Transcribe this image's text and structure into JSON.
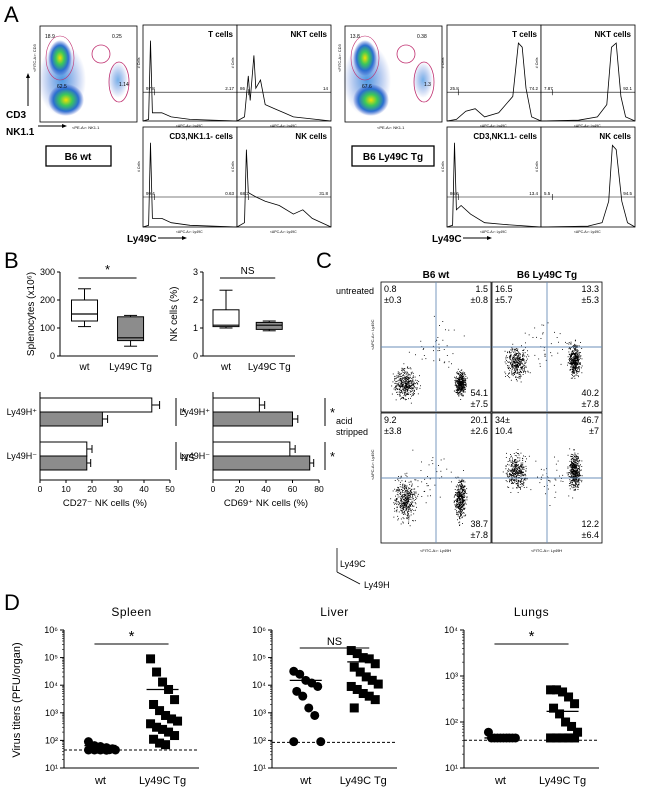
{
  "panels": {
    "A": {
      "letter": "A",
      "flow": {
        "wt_label": "B6 wt",
        "tg_label": "B6 Ly49C Tg",
        "axes": {
          "cd3": "CD3",
          "nk11": "NK1.1",
          "ly49c": "Ly49C",
          "fitc_cd3": "<FITC-A>: CD3",
          "pe_nk11": "<PE-A>: NK1.1",
          "apc_ly49c": "<APC-A>: Ly49C",
          "count": "# Cells"
        },
        "wt_dot": {
          "top_left": "18.9",
          "top_right": "0.25",
          "bottom_left": "62.5",
          "right_gate": "1.14"
        },
        "tg_dot": {
          "top_left": "13.8",
          "top_right": "0.38",
          "bottom_left": "67.6",
          "right_gate": "1.3"
        },
        "histograms": {
          "wt_t": {
            "title": "T cells",
            "left": "97.8",
            "right": "2.17"
          },
          "wt_nkt": {
            "title": "NKT cells",
            "left": "86",
            "right": "14"
          },
          "wt_cd3nk": {
            "title": "CD3,NK1.1- cells",
            "left": "99.4",
            "right": "0.63"
          },
          "wt_nk": {
            "title": "NK cells",
            "left": "68.2",
            "right": "31.8"
          },
          "tg_t": {
            "title": "T cells",
            "left": "25.8",
            "right": "74.2"
          },
          "tg_nkt": {
            "title": "NKT cells",
            "left": "7.87",
            "right": "92.1"
          },
          "tg_cd3nk": {
            "title": "CD3,NK1.1- cells",
            "left": "86.6",
            "right": "13.4"
          },
          "tg_nk": {
            "title": "NK cells",
            "left": "5.5",
            "right": "94.5"
          }
        }
      }
    },
    "B": {
      "letter": "B",
      "splenocytes": {
        "ylabel": "Splenocytes (x10⁶)",
        "yticks": [
          "0",
          "100",
          "200",
          "300"
        ],
        "categories": [
          "wt",
          "Ly49C Tg"
        ],
        "significance": "*"
      },
      "nk_pct": {
        "ylabel": "NK cells (%)",
        "yticks": [
          "0",
          "1",
          "2",
          "3"
        ],
        "categories": [
          "wt",
          "Ly49C Tg"
        ],
        "significance": "NS"
      },
      "cd27": {
        "xlabel": "CD27⁻ NK cells (%)",
        "xticks": [
          "0",
          "10",
          "20",
          "30",
          "40",
          "50"
        ],
        "rows": [
          "Ly49H⁺",
          "Ly49H⁻"
        ],
        "significance": [
          "*",
          "NS"
        ]
      },
      "cd69": {
        "xlabel": "CD69⁺ NK cells (%)",
        "xticks": [
          "0",
          "20",
          "40",
          "60",
          "80"
        ],
        "rows": [
          "Ly49H⁺",
          "Ly49H⁻"
        ],
        "significance": [
          "*",
          "*"
        ]
      }
    },
    "C": {
      "letter": "C",
      "col_titles": [
        "B6 wt",
        "B6 Ly49C Tg"
      ],
      "row_titles": [
        "untreated",
        "acid\nstripped"
      ],
      "y_axis_label": "Ly49C",
      "x_axis_label": "Ly49H",
      "apc_label": "<APC-A>: Ly49C",
      "fitc_label": "<FITC-A>: Ly49H",
      "quadrants": {
        "wt_untreated": {
          "tl": [
            "0.8",
            "±0.3"
          ],
          "tr": [
            "1.5",
            "±0.8"
          ],
          "br": [
            "54.1",
            "±7.5"
          ]
        },
        "tg_untreated": {
          "tl": [
            "16.5",
            "±5.7"
          ],
          "tr": [
            "13.3",
            "±5.3"
          ],
          "br": [
            "40.2",
            "±7.8"
          ]
        },
        "wt_acid": {
          "tl": [
            "9.2",
            "±3.8"
          ],
          "tr": [
            "20.1",
            "±2.6"
          ],
          "br": [
            "38.7",
            "±7.8"
          ]
        },
        "tg_acid": {
          "tl": [
            "34±",
            "10.4"
          ],
          "tr": [
            "46.7",
            "±7"
          ],
          "br": [
            "12.2",
            "±6.4"
          ]
        }
      }
    },
    "D": {
      "letter": "D",
      "ylabel": "Virus titers (PFU/organ)",
      "plots": [
        {
          "title": "Spleen",
          "significance": "*",
          "categories": [
            "wt",
            "Ly49C Tg"
          ]
        },
        {
          "title": "Liver",
          "significance": "NS",
          "categories": [
            "wt",
            "Ly49C Tg"
          ]
        },
        {
          "title": "Lungs",
          "significance": "*",
          "categories": [
            "wt",
            "Ly49C Tg"
          ]
        }
      ]
    }
  },
  "chart_data": [
    {
      "type": "box",
      "panel": "B-splenocytes",
      "categories": [
        "wt",
        "Ly49C Tg"
      ],
      "series": [
        {
          "values": {
            "min": 105,
            "q1": 125,
            "median": 150,
            "q3": 200,
            "max": 240
          }
        },
        {
          "values": {
            "min": 35,
            "q1": 55,
            "median": 65,
            "q3": 140,
            "max": 145
          }
        }
      ],
      "ylabel": "Splenocytes (x10⁶)",
      "ylim": [
        0,
        300
      ]
    },
    {
      "type": "box",
      "panel": "B-nk-percent",
      "categories": [
        "wt",
        "Ly49C Tg"
      ],
      "series": [
        {
          "values": {
            "min": 1.0,
            "q1": 1.05,
            "median": 1.1,
            "q3": 1.65,
            "max": 2.35
          }
        },
        {
          "values": {
            "min": 0.9,
            "q1": 0.95,
            "median": 1.1,
            "q3": 1.2,
            "max": 1.25
          }
        }
      ],
      "ylabel": "NK cells (%)",
      "ylim": [
        0,
        3
      ]
    },
    {
      "type": "bar",
      "panel": "B-cd27",
      "categories": [
        "Ly49H⁺",
        "Ly49H⁻"
      ],
      "series": [
        {
          "values": [
            43,
            18
          ],
          "err": [
            3,
            2
          ]
        },
        {
          "values": [
            24,
            18
          ],
          "err": [
            2,
            1.5
          ]
        }
      ],
      "xlabel": "CD27⁻ NK cells (%)",
      "xlim": [
        0,
        50
      ]
    },
    {
      "type": "bar",
      "panel": "B-cd69",
      "categories": [
        "Ly49H⁺",
        "Ly49H⁻"
      ],
      "series": [
        {
          "values": [
            35,
            58
          ],
          "err": [
            4,
            4
          ]
        },
        {
          "values": [
            60,
            73
          ],
          "err": [
            4,
            3
          ]
        }
      ],
      "xlabel": "CD69⁺ NK cells (%)",
      "xlim": [
        0,
        80
      ]
    },
    {
      "type": "scatter",
      "panel": "D-spleen",
      "ylabel": "Virus titers (PFU/organ)",
      "ylim": [
        10,
        1000000
      ],
      "yscale": "log",
      "yticks": [
        "10¹",
        "10²",
        "10³",
        "10⁴",
        "10⁵",
        "10⁶"
      ],
      "detection_limit": 45,
      "groups": [
        {
          "category": "wt",
          "values": [
            90,
            65,
            60,
            55,
            50,
            50,
            48,
            48,
            46,
            45,
            45,
            45,
            45,
            44
          ],
          "mean": 65
        },
        {
          "category": "Ly49C Tg",
          "values": [
            90000,
            30000,
            13000,
            7000,
            3000,
            2000,
            1200,
            800,
            600,
            500,
            400,
            300,
            250,
            200,
            150,
            110,
            80,
            70
          ],
          "mean": 7000
        }
      ]
    },
    {
      "type": "scatter",
      "panel": "D-liver",
      "ylabel": "Virus titers (PFU/organ)",
      "ylim": [
        10,
        1000000
      ],
      "yscale": "log",
      "yticks": [
        "10¹",
        "10²",
        "10³",
        "10⁴",
        "10⁵",
        "10⁶"
      ],
      "detection_limit": 85,
      "groups": [
        {
          "category": "wt",
          "values": [
            32000,
            25000,
            15000,
            12000,
            9000,
            6000,
            4000,
            1500,
            800,
            90,
            90
          ],
          "mean": 15000
        },
        {
          "category": "Ly49C Tg",
          "values": [
            180000,
            140000,
            100000,
            90000,
            60000,
            45000,
            30000,
            20000,
            15000,
            11000,
            9000,
            7000,
            5000,
            4000,
            3000,
            1500
          ],
          "mean": 70000
        }
      ]
    },
    {
      "type": "scatter",
      "panel": "D-lungs",
      "ylabel": "Virus titers (PFU/organ)",
      "ylim": [
        10,
        10000
      ],
      "yscale": "log",
      "yticks": [
        "10¹",
        "10²",
        "10³",
        "10⁴"
      ],
      "detection_limit": 40,
      "groups": [
        {
          "category": "wt",
          "values": [
            60,
            45,
            45,
            45,
            45,
            45,
            45,
            45,
            45,
            45
          ],
          "mean": 45
        },
        {
          "category": "Ly49C Tg",
          "values": [
            500,
            500,
            450,
            350,
            250,
            200,
            150,
            100,
            80,
            60,
            45,
            45,
            45,
            45,
            45
          ],
          "mean": 170
        }
      ]
    }
  ]
}
